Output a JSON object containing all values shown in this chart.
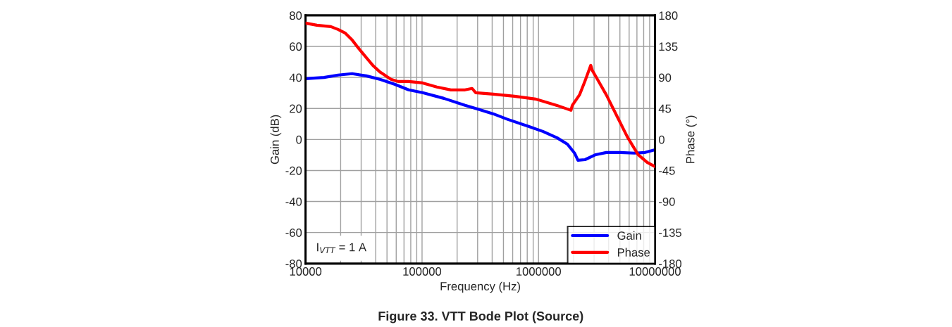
{
  "chart_data": {
    "type": "line",
    "title": "Figure 33. VTT Bode Plot (Source)",
    "xlabel": "Frequency (Hz)",
    "ylabel": "Gain (dB)",
    "y2label": "Phase (°)",
    "log": "x",
    "grid": true,
    "legend": "bottom right",
    "line_style": "solid",
    "marker": "none",
    "xlim": [
      10000,
      10000000
    ],
    "xticks": [
      10000,
      100000,
      1000000,
      10000000
    ],
    "ylim": [
      -80,
      80
    ],
    "yticks": [
      -80,
      -60,
      -40,
      -20,
      0,
      20,
      40,
      60,
      80
    ],
    "y2lim": [
      -180,
      180
    ],
    "y2ticks": [
      -180,
      -135,
      -90,
      -45,
      0,
      45,
      90,
      135,
      180
    ],
    "annotations": [
      "I$_{VTT}$ = 1 A"
    ],
    "series": [
      {
        "name": "Gain",
        "color": "#0000ff",
        "x": [
          10000,
          14400,
          19000,
          25100,
          33200,
          43900,
          58000,
          76700,
          101000,
          154000,
          234000,
          310000,
          409000,
          541000,
          822000,
          1090000,
          1440000,
          1770000,
          2040000,
          2180000,
          2510000,
          3100000,
          3820000,
          5050000,
          6670000,
          8230000,
          10000000
        ],
        "values": [
          39.2,
          40,
          41.5,
          42.4,
          41,
          38.7,
          35.6,
          32,
          30.2,
          26.5,
          22,
          19.3,
          16.5,
          13,
          8.4,
          5.2,
          1.1,
          -3,
          -8.8,
          -13.4,
          -13,
          -9.8,
          -8.4,
          -8.4,
          -8.8,
          -8.4,
          -6.6
        ]
      },
      {
        "name": "Phase",
        "color": "#ff0000",
        "axis": "y2",
        "x": [
          10000,
          12500,
          16500,
          19000,
          21800,
          25100,
          28900,
          33200,
          38200,
          43900,
          54100,
          62200,
          76700,
          101000,
          134000,
          177000,
          234000,
          269000,
          289000,
          409000,
          622000,
          946000,
          1440000,
          1900000,
          1950000,
          2250000,
          2510000,
          2810000,
          2890000,
          3230000,
          3820000,
          4710000,
          5800000,
          7160000,
          8570000,
          10000000
        ],
        "values": [
          168.8,
          165.7,
          163.7,
          159.6,
          154.5,
          144.3,
          131,
          118.8,
          106.6,
          97.4,
          87.2,
          84.1,
          84.1,
          82,
          76,
          71.9,
          71.9,
          74,
          67.8,
          65.8,
          62.7,
          58.6,
          49.4,
          42.3,
          49.4,
          64.7,
          85.1,
          107.6,
          100.4,
          86.2,
          64.7,
          34,
          3.5,
          -22,
          -33.2,
          -39.3
        ]
      }
    ]
  }
}
